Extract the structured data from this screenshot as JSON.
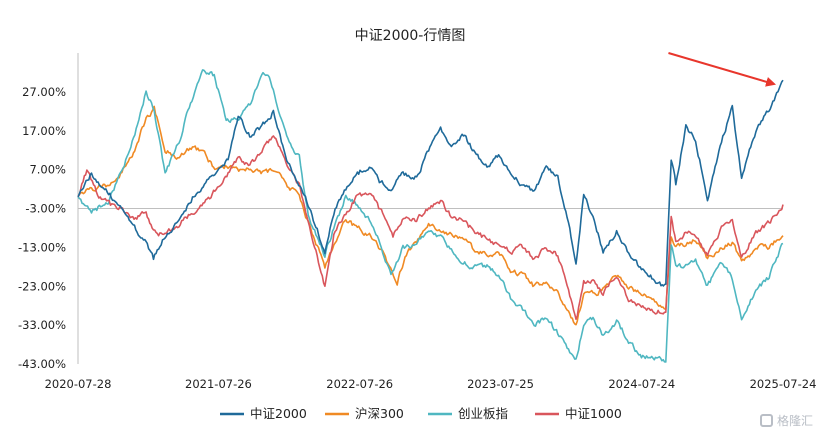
{
  "chart_data": {
    "type": "line",
    "title": "中证2000-行情图",
    "y_ticks": [
      "27.00%",
      "17.00%",
      "7.00%",
      "-3.00%",
      "-13.00%",
      "-23.00%",
      "-33.00%",
      "-43.00%"
    ],
    "y_tick_values": [
      27,
      17,
      7,
      -3,
      -13,
      -23,
      -33,
      -43
    ],
    "ylim": [
      -43,
      37
    ],
    "x_ticks": [
      "2020-07-28",
      "2021-07-26",
      "2022-07-26",
      "2023-07-25",
      "2024-07-24",
      "2025-07-24"
    ],
    "x_range": [
      "2020-07-28",
      "2025-07-24"
    ],
    "grid": false,
    "legend_position": "bottom",
    "series": [
      {
        "name": "中证2000",
        "color": "#1f6a9a",
        "points": [
          [
            "2020-07-28",
            0
          ],
          [
            "2020-09-01",
            6
          ],
          [
            "2020-10-15",
            1
          ],
          [
            "2020-12-01",
            -5
          ],
          [
            "2021-01-20",
            -12
          ],
          [
            "2021-02-08",
            -16
          ],
          [
            "2021-03-10",
            -10
          ],
          [
            "2021-04-15",
            -6
          ],
          [
            "2021-05-20",
            0
          ],
          [
            "2021-06-20",
            3
          ],
          [
            "2021-07-20",
            6
          ],
          [
            "2021-08-20",
            10
          ],
          [
            "2021-09-15",
            21
          ],
          [
            "2021-10-15",
            16
          ],
          [
            "2021-11-15",
            18
          ],
          [
            "2021-12-15",
            22
          ],
          [
            "2022-01-15",
            10
          ],
          [
            "2022-02-15",
            4
          ],
          [
            "2022-03-15",
            -2
          ],
          [
            "2022-04-27",
            -14
          ],
          [
            "2022-05-20",
            -4
          ],
          [
            "2022-06-20",
            2
          ],
          [
            "2022-07-20",
            6
          ],
          [
            "2022-08-20",
            8
          ],
          [
            "2022-09-15",
            4
          ],
          [
            "2022-10-15",
            2
          ],
          [
            "2022-11-15",
            6
          ],
          [
            "2022-12-20",
            5
          ],
          [
            "2023-01-20",
            12
          ],
          [
            "2023-02-20",
            18
          ],
          [
            "2023-03-20",
            13
          ],
          [
            "2023-04-20",
            16
          ],
          [
            "2023-05-20",
            11
          ],
          [
            "2023-06-20",
            8
          ],
          [
            "2023-07-20",
            11
          ],
          [
            "2023-08-20",
            6
          ],
          [
            "2023-09-20",
            3
          ],
          [
            "2023-10-20",
            1
          ],
          [
            "2023-11-20",
            8
          ],
          [
            "2023-12-20",
            5
          ],
          [
            "2024-01-20",
            -8
          ],
          [
            "2024-02-05",
            -18
          ],
          [
            "2024-02-25",
            0
          ],
          [
            "2024-03-20",
            -5
          ],
          [
            "2024-04-15",
            -14
          ],
          [
            "2024-05-20",
            -9
          ],
          [
            "2024-06-20",
            -15
          ],
          [
            "2024-07-20",
            -18
          ],
          [
            "2024-09-15",
            -23
          ],
          [
            "2024-09-24",
            -22
          ],
          [
            "2024-10-08",
            10
          ],
          [
            "2024-10-20",
            3
          ],
          [
            "2024-11-15",
            18
          ],
          [
            "2024-12-10",
            15
          ],
          [
            "2025-01-10",
            -1
          ],
          [
            "2025-02-15",
            14
          ],
          [
            "2025-03-15",
            23
          ],
          [
            "2025-04-08",
            5
          ],
          [
            "2025-05-15",
            17
          ],
          [
            "2025-06-15",
            22
          ],
          [
            "2025-07-24",
            30
          ]
        ]
      },
      {
        "name": "沪深300",
        "color": "#f08a24",
        "points": [
          [
            "2020-07-28",
            0
          ],
          [
            "2020-09-01",
            2
          ],
          [
            "2020-10-15",
            3
          ],
          [
            "2020-11-15",
            6
          ],
          [
            "2020-12-15",
            11
          ],
          [
            "2021-01-20",
            20
          ],
          [
            "2021-02-10",
            23
          ],
          [
            "2021-03-10",
            12
          ],
          [
            "2021-04-15",
            10
          ],
          [
            "2021-05-20",
            13
          ],
          [
            "2021-06-20",
            11
          ],
          [
            "2021-07-20",
            7
          ],
          [
            "2021-08-20",
            8
          ],
          [
            "2021-09-20",
            7
          ],
          [
            "2021-10-20",
            7
          ],
          [
            "2021-11-20",
            6
          ],
          [
            "2021-12-20",
            7
          ],
          [
            "2022-01-20",
            3
          ],
          [
            "2022-02-20",
            0
          ],
          [
            "2022-03-15",
            -7
          ],
          [
            "2022-04-27",
            -18
          ],
          [
            "2022-05-20",
            -12
          ],
          [
            "2022-06-20",
            -6
          ],
          [
            "2022-07-20",
            -8
          ],
          [
            "2022-08-20",
            -10
          ],
          [
            "2022-09-20",
            -14
          ],
          [
            "2022-10-31",
            -22
          ],
          [
            "2022-11-30",
            -13
          ],
          [
            "2022-12-20",
            -12
          ],
          [
            "2023-01-20",
            -7
          ],
          [
            "2023-02-20",
            -9
          ],
          [
            "2023-03-20",
            -10
          ],
          [
            "2023-04-20",
            -10
          ],
          [
            "2023-05-20",
            -14
          ],
          [
            "2023-06-20",
            -15
          ],
          [
            "2023-07-20",
            -14
          ],
          [
            "2023-08-20",
            -19
          ],
          [
            "2023-09-20",
            -20
          ],
          [
            "2023-10-20",
            -23
          ],
          [
            "2023-11-20",
            -22
          ],
          [
            "2023-12-20",
            -25
          ],
          [
            "2024-01-20",
            -30
          ],
          [
            "2024-02-05",
            -33
          ],
          [
            "2024-02-25",
            -25
          ],
          [
            "2024-03-20",
            -25
          ],
          [
            "2024-04-15",
            -24
          ],
          [
            "2024-05-20",
            -20
          ],
          [
            "2024-06-20",
            -23
          ],
          [
            "2024-07-20",
            -25
          ],
          [
            "2024-09-13",
            -28
          ],
          [
            "2024-09-24",
            -28
          ],
          [
            "2024-10-08",
            -10
          ],
          [
            "2024-10-20",
            -13
          ],
          [
            "2024-11-15",
            -12
          ],
          [
            "2024-12-10",
            -11
          ],
          [
            "2025-01-10",
            -16
          ],
          [
            "2025-02-15",
            -13
          ],
          [
            "2025-03-15",
            -12
          ],
          [
            "2025-04-08",
            -17
          ],
          [
            "2025-05-15",
            -13
          ],
          [
            "2025-06-15",
            -13
          ],
          [
            "2025-07-24",
            -10
          ]
        ]
      },
      {
        "name": "创业板指",
        "color": "#4fb7c1",
        "points": [
          [
            "2020-07-28",
            0
          ],
          [
            "2020-09-01",
            -4
          ],
          [
            "2020-10-15",
            -1
          ],
          [
            "2020-11-15",
            6
          ],
          [
            "2020-12-15",
            14
          ],
          [
            "2021-01-05",
            21
          ],
          [
            "2021-01-20",
            27
          ],
          [
            "2021-02-10",
            22
          ],
          [
            "2021-03-10",
            6
          ],
          [
            "2021-04-15",
            14
          ],
          [
            "2021-05-15",
            24
          ],
          [
            "2021-06-15",
            33
          ],
          [
            "2021-07-15",
            31
          ],
          [
            "2021-08-15",
            20
          ],
          [
            "2021-09-15",
            20
          ],
          [
            "2021-10-15",
            24
          ],
          [
            "2021-11-15",
            31
          ],
          [
            "2021-12-01",
            32
          ],
          [
            "2022-01-15",
            16
          ],
          [
            "2022-02-20",
            10
          ],
          [
            "2022-03-15",
            -5
          ],
          [
            "2022-04-27",
            -15
          ],
          [
            "2022-05-20",
            -8
          ],
          [
            "2022-06-20",
            0
          ],
          [
            "2022-07-20",
            -2
          ],
          [
            "2022-08-20",
            -6
          ],
          [
            "2022-09-20",
            -13
          ],
          [
            "2022-10-15",
            -20
          ],
          [
            "2022-11-15",
            -13
          ],
          [
            "2022-12-20",
            -12
          ],
          [
            "2023-01-20",
            -9
          ],
          [
            "2023-02-20",
            -10
          ],
          [
            "2023-03-20",
            -14
          ],
          [
            "2023-04-20",
            -17
          ],
          [
            "2023-05-20",
            -18
          ],
          [
            "2023-06-20",
            -18
          ],
          [
            "2023-07-20",
            -20
          ],
          [
            "2023-08-20",
            -26
          ],
          [
            "2023-09-20",
            -29
          ],
          [
            "2023-10-20",
            -33
          ],
          [
            "2023-11-20",
            -31
          ],
          [
            "2023-12-20",
            -35
          ],
          [
            "2024-01-20",
            -40
          ],
          [
            "2024-02-05",
            -42
          ],
          [
            "2024-02-25",
            -33
          ],
          [
            "2024-03-20",
            -31
          ],
          [
            "2024-04-15",
            -36
          ],
          [
            "2024-05-20",
            -32
          ],
          [
            "2024-06-20",
            -37
          ],
          [
            "2024-07-20",
            -41
          ],
          [
            "2024-09-24",
            -42
          ],
          [
            "2024-10-08",
            -12
          ],
          [
            "2024-10-20",
            -18
          ],
          [
            "2024-11-15",
            -18
          ],
          [
            "2024-12-10",
            -16
          ],
          [
            "2025-01-10",
            -23
          ],
          [
            "2025-02-15",
            -17
          ],
          [
            "2025-03-15",
            -21
          ],
          [
            "2025-04-08",
            -31
          ],
          [
            "2025-05-15",
            -24
          ],
          [
            "2025-06-15",
            -21
          ],
          [
            "2025-07-24",
            -12
          ]
        ]
      },
      {
        "name": "中证1000",
        "color": "#d9565c",
        "points": [
          [
            "2020-07-28",
            0
          ],
          [
            "2020-08-20",
            7
          ],
          [
            "2020-09-20",
            0
          ],
          [
            "2020-10-20",
            -2
          ],
          [
            "2020-11-20",
            -3
          ],
          [
            "2020-12-20",
            -6
          ],
          [
            "2021-01-20",
            -4
          ],
          [
            "2021-02-08",
            -9
          ],
          [
            "2021-03-10",
            -10
          ],
          [
            "2021-04-15",
            -7
          ],
          [
            "2021-05-20",
            -4
          ],
          [
            "2021-06-20",
            -2
          ],
          [
            "2021-07-20",
            2
          ],
          [
            "2021-08-20",
            6
          ],
          [
            "2021-09-15",
            10
          ],
          [
            "2021-10-15",
            8
          ],
          [
            "2021-11-15",
            12
          ],
          [
            "2021-12-15",
            16
          ],
          [
            "2022-01-20",
            8
          ],
          [
            "2022-02-20",
            3
          ],
          [
            "2022-03-15",
            -6
          ],
          [
            "2022-04-27",
            -23
          ],
          [
            "2022-05-20",
            -10
          ],
          [
            "2022-06-20",
            -4
          ],
          [
            "2022-07-20",
            0
          ],
          [
            "2022-08-20",
            1
          ],
          [
            "2022-09-20",
            -4
          ],
          [
            "2022-10-20",
            -10
          ],
          [
            "2022-11-20",
            -5
          ],
          [
            "2022-12-20",
            -6
          ],
          [
            "2023-01-20",
            -3
          ],
          [
            "2023-02-20",
            -1
          ],
          [
            "2023-03-20",
            -5
          ],
          [
            "2023-04-20",
            -6
          ],
          [
            "2023-05-20",
            -9
          ],
          [
            "2023-06-20",
            -11
          ],
          [
            "2023-07-20",
            -12
          ],
          [
            "2023-08-20",
            -14
          ],
          [
            "2023-09-20",
            -13
          ],
          [
            "2023-10-20",
            -16
          ],
          [
            "2023-11-20",
            -13
          ],
          [
            "2023-12-20",
            -15
          ],
          [
            "2024-01-20",
            -25
          ],
          [
            "2024-02-05",
            -32
          ],
          [
            "2024-02-25",
            -22
          ],
          [
            "2024-03-20",
            -22
          ],
          [
            "2024-04-15",
            -25
          ],
          [
            "2024-05-20",
            -20
          ],
          [
            "2024-06-20",
            -26
          ],
          [
            "2024-07-20",
            -28
          ],
          [
            "2024-09-24",
            -30
          ],
          [
            "2024-10-08",
            -5
          ],
          [
            "2024-10-20",
            -12
          ],
          [
            "2024-11-15",
            -9
          ],
          [
            "2024-12-10",
            -10
          ],
          [
            "2025-01-10",
            -15
          ],
          [
            "2025-02-15",
            -8
          ],
          [
            "2025-03-15",
            -6
          ],
          [
            "2025-04-08",
            -16
          ],
          [
            "2025-05-15",
            -9
          ],
          [
            "2025-06-15",
            -7
          ],
          [
            "2025-07-24",
            -2
          ]
        ]
      }
    ],
    "annotations": [
      {
        "type": "arrow",
        "color": "#e8362c",
        "from": [
          "2024-10-01",
          37
        ],
        "to": [
          "2025-07-01",
          29
        ]
      }
    ]
  },
  "watermark": {
    "icon": "gelonghui-logo-icon",
    "text": "格隆汇"
  }
}
